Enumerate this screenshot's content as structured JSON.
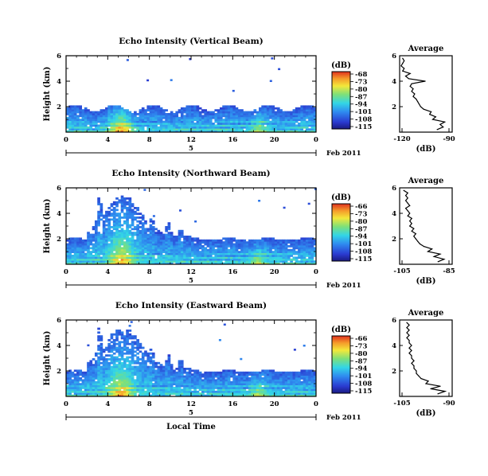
{
  "chart_data": [
    {
      "type": "heatmap",
      "title": "Echo Intensity (Vertical Beam)",
      "ylabel": "Height (km)",
      "xlim": [
        0,
        24
      ],
      "ylim": [
        0,
        6
      ],
      "xticks": [
        "0",
        "4",
        "8",
        "12",
        "16",
        "20",
        "0"
      ],
      "yticks": [
        "2",
        "4",
        "6"
      ],
      "date_ticks": [
        "5"
      ],
      "date_label": "Feb 2011",
      "colorbar": {
        "title": "(dB)",
        "ticks": [
          "-68",
          "-73",
          "-80",
          "-87",
          "-94",
          "-101",
          "-108",
          "-115"
        ]
      },
      "profile": {
        "title": "Average",
        "xlabel": "(dB)",
        "xticks": [
          "-120",
          "-90"
        ],
        "xlim": [
          -120,
          -85
        ],
        "yticks": [
          "2",
          "4",
          "6"
        ],
        "heights": [
          0.2,
          0.4,
          0.6,
          0.8,
          1.0,
          1.2,
          1.4,
          1.6,
          1.8,
          2.0,
          2.2,
          2.4,
          2.6,
          2.8,
          3.0,
          3.2,
          3.4,
          3.6,
          3.8,
          4.0,
          4.2,
          4.4,
          4.6,
          4.8,
          5.0,
          5.2,
          5.4,
          5.6,
          5.8
        ],
        "values": [
          -95,
          -91,
          -93,
          -90,
          -98,
          -96,
          -100,
          -99,
          -104,
          -106,
          -107,
          -108,
          -109,
          -111,
          -110,
          -112,
          -111,
          -113,
          -112,
          -103,
          -114,
          -116,
          -113,
          -118,
          -117,
          -119,
          -118,
          -117,
          -118
        ]
      }
    },
    {
      "type": "heatmap",
      "title": "Echo Intensity (Northward Beam)",
      "ylabel": "Height (km)",
      "xlim": [
        0,
        24
      ],
      "ylim": [
        0,
        6
      ],
      "xticks": [
        "0",
        "4",
        "8",
        "12",
        "16",
        "20",
        "0"
      ],
      "yticks": [
        "2",
        "4",
        "6"
      ],
      "date_ticks": [
        "5"
      ],
      "date_label": "Feb 2011",
      "colorbar": {
        "title": "(dB)",
        "ticks": [
          "-66",
          "-73",
          "-80",
          "-87",
          "-94",
          "-101",
          "-108",
          "-115"
        ]
      },
      "profile": {
        "title": "Average",
        "xlabel": "(dB)",
        "xticks": [
          "-105",
          "-85"
        ],
        "xlim": [
          -108,
          -82
        ],
        "yticks": [
          "2",
          "4",
          "6"
        ],
        "heights": [
          0.2,
          0.4,
          0.6,
          0.8,
          1.0,
          1.2,
          1.4,
          1.6,
          1.8,
          2.0,
          2.2,
          2.4,
          2.6,
          2.8,
          3.0,
          3.2,
          3.4,
          3.6,
          3.8,
          4.0,
          4.2,
          4.4,
          4.6,
          4.8,
          5.0,
          5.2,
          5.4,
          5.6,
          5.8
        ],
        "values": [
          -89,
          -86,
          -91,
          -88,
          -94,
          -92,
          -96,
          -98,
          -99,
          -100,
          -101,
          -100,
          -102,
          -101,
          -103,
          -102,
          -103,
          -102,
          -104,
          -103,
          -104,
          -105,
          -103,
          -104,
          -105,
          -104,
          -105,
          -104,
          -106
        ]
      }
    },
    {
      "type": "heatmap",
      "title": "Echo Intensity (Eastward Beam)",
      "ylabel": "Height (km)",
      "xlabel": "Local Time",
      "xlim": [
        0,
        24
      ],
      "ylim": [
        0,
        6
      ],
      "xticks": [
        "0",
        "4",
        "8",
        "12",
        "16",
        "20",
        "0"
      ],
      "yticks": [
        "2",
        "4",
        "6"
      ],
      "date_ticks": [
        "5"
      ],
      "date_label": "Feb 2011",
      "colorbar": {
        "title": "(dB)",
        "ticks": [
          "-66",
          "-73",
          "-80",
          "-87",
          "-94",
          "-101",
          "-108",
          "-115"
        ]
      },
      "profile": {
        "title": "Average",
        "xlabel": "(dB)",
        "xticks": [
          "-105",
          "-90"
        ],
        "xlim": [
          -108,
          -86
        ],
        "yticks": [
          "2",
          "4",
          "6"
        ],
        "heights": [
          0.2,
          0.4,
          0.6,
          0.8,
          1.0,
          1.2,
          1.4,
          1.6,
          1.8,
          2.0,
          2.2,
          2.4,
          2.6,
          2.8,
          3.0,
          3.2,
          3.4,
          3.6,
          3.8,
          4.0,
          4.2,
          4.4,
          4.6,
          4.8,
          5.0,
          5.2,
          5.4,
          5.6,
          5.8
        ],
        "values": [
          -92,
          -89,
          -95,
          -91,
          -97,
          -96,
          -99,
          -100,
          -101,
          -101,
          -102,
          -102,
          -103,
          -102,
          -103,
          -103,
          -104,
          -103,
          -104,
          -103,
          -104,
          -104,
          -105,
          -104,
          -105,
          -104,
          -105,
          -104,
          -105
        ]
      }
    }
  ]
}
